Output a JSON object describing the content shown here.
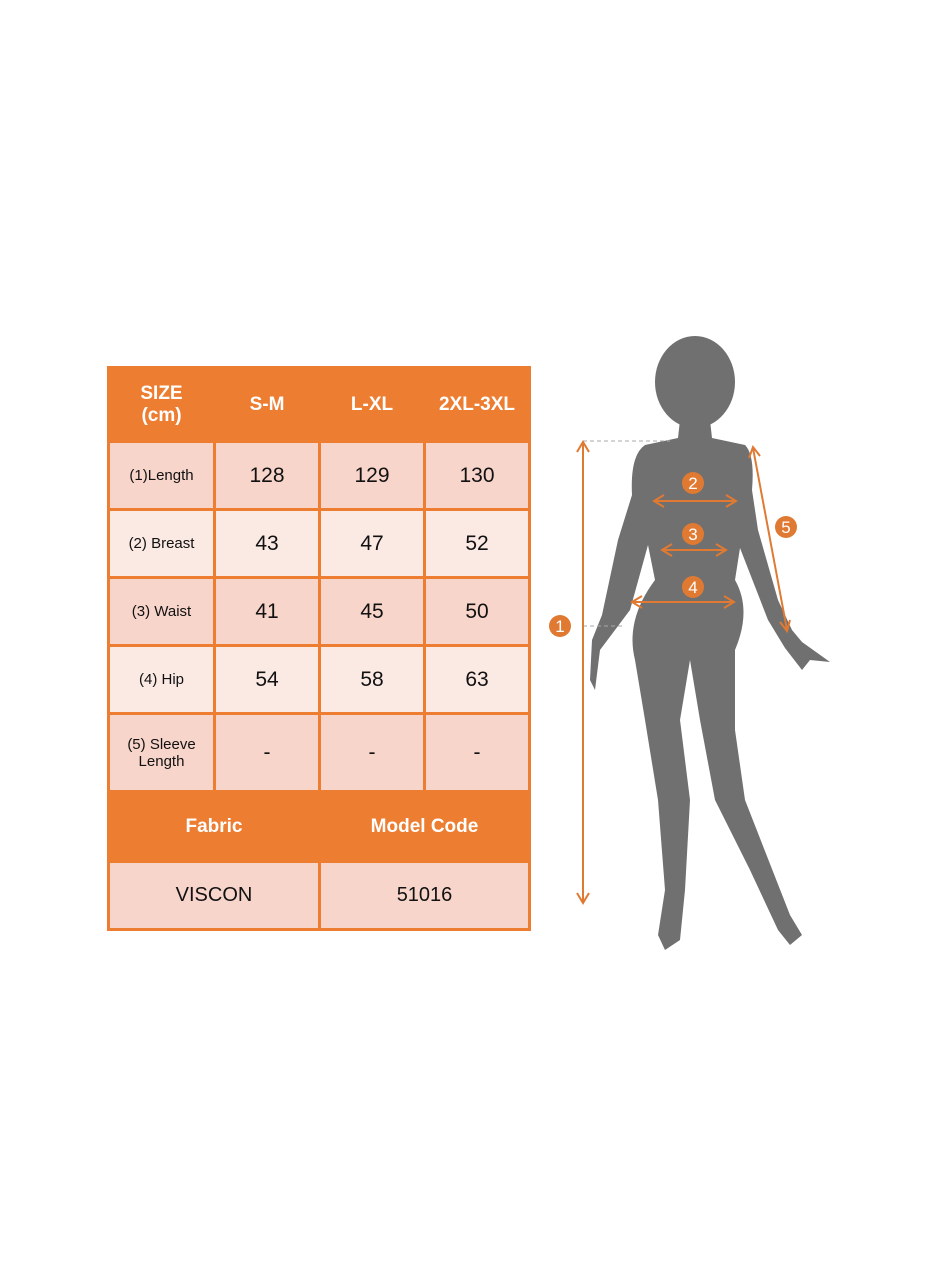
{
  "table": {
    "header": [
      "SIZE\n(cm)",
      "S-M",
      "L-XL",
      "2XL-3XL"
    ],
    "header_line1": "SIZE",
    "header_line2": "(cm)",
    "sizes": [
      "S-M",
      "L-XL",
      "2XL-3XL"
    ],
    "rows": [
      {
        "label": "(1)Length",
        "values": [
          "128",
          "129",
          "130"
        ]
      },
      {
        "label": "(2) Breast",
        "values": [
          "43",
          "47",
          "52"
        ]
      },
      {
        "label": "(3) Waist",
        "values": [
          "41",
          "45",
          "50"
        ]
      },
      {
        "label": "(4) Hip",
        "values": [
          "54",
          "58",
          "63"
        ]
      },
      {
        "label": "(5) Sleeve Length",
        "label_line1": "(5) Sleeve",
        "label_line2": "Length",
        "values": [
          "-",
          "-",
          "-"
        ]
      }
    ],
    "fabric_label": "Fabric",
    "model_code_label": "Model Code",
    "fabric": "VISCON",
    "model_code": "51016"
  },
  "figure": {
    "markers": [
      "1",
      "2",
      "3",
      "4",
      "5"
    ]
  },
  "colors": {
    "accent": "#ed7d31",
    "row_dark": "#f8d5cb",
    "row_light": "#fbe9e4",
    "silhouette": "#707070"
  }
}
